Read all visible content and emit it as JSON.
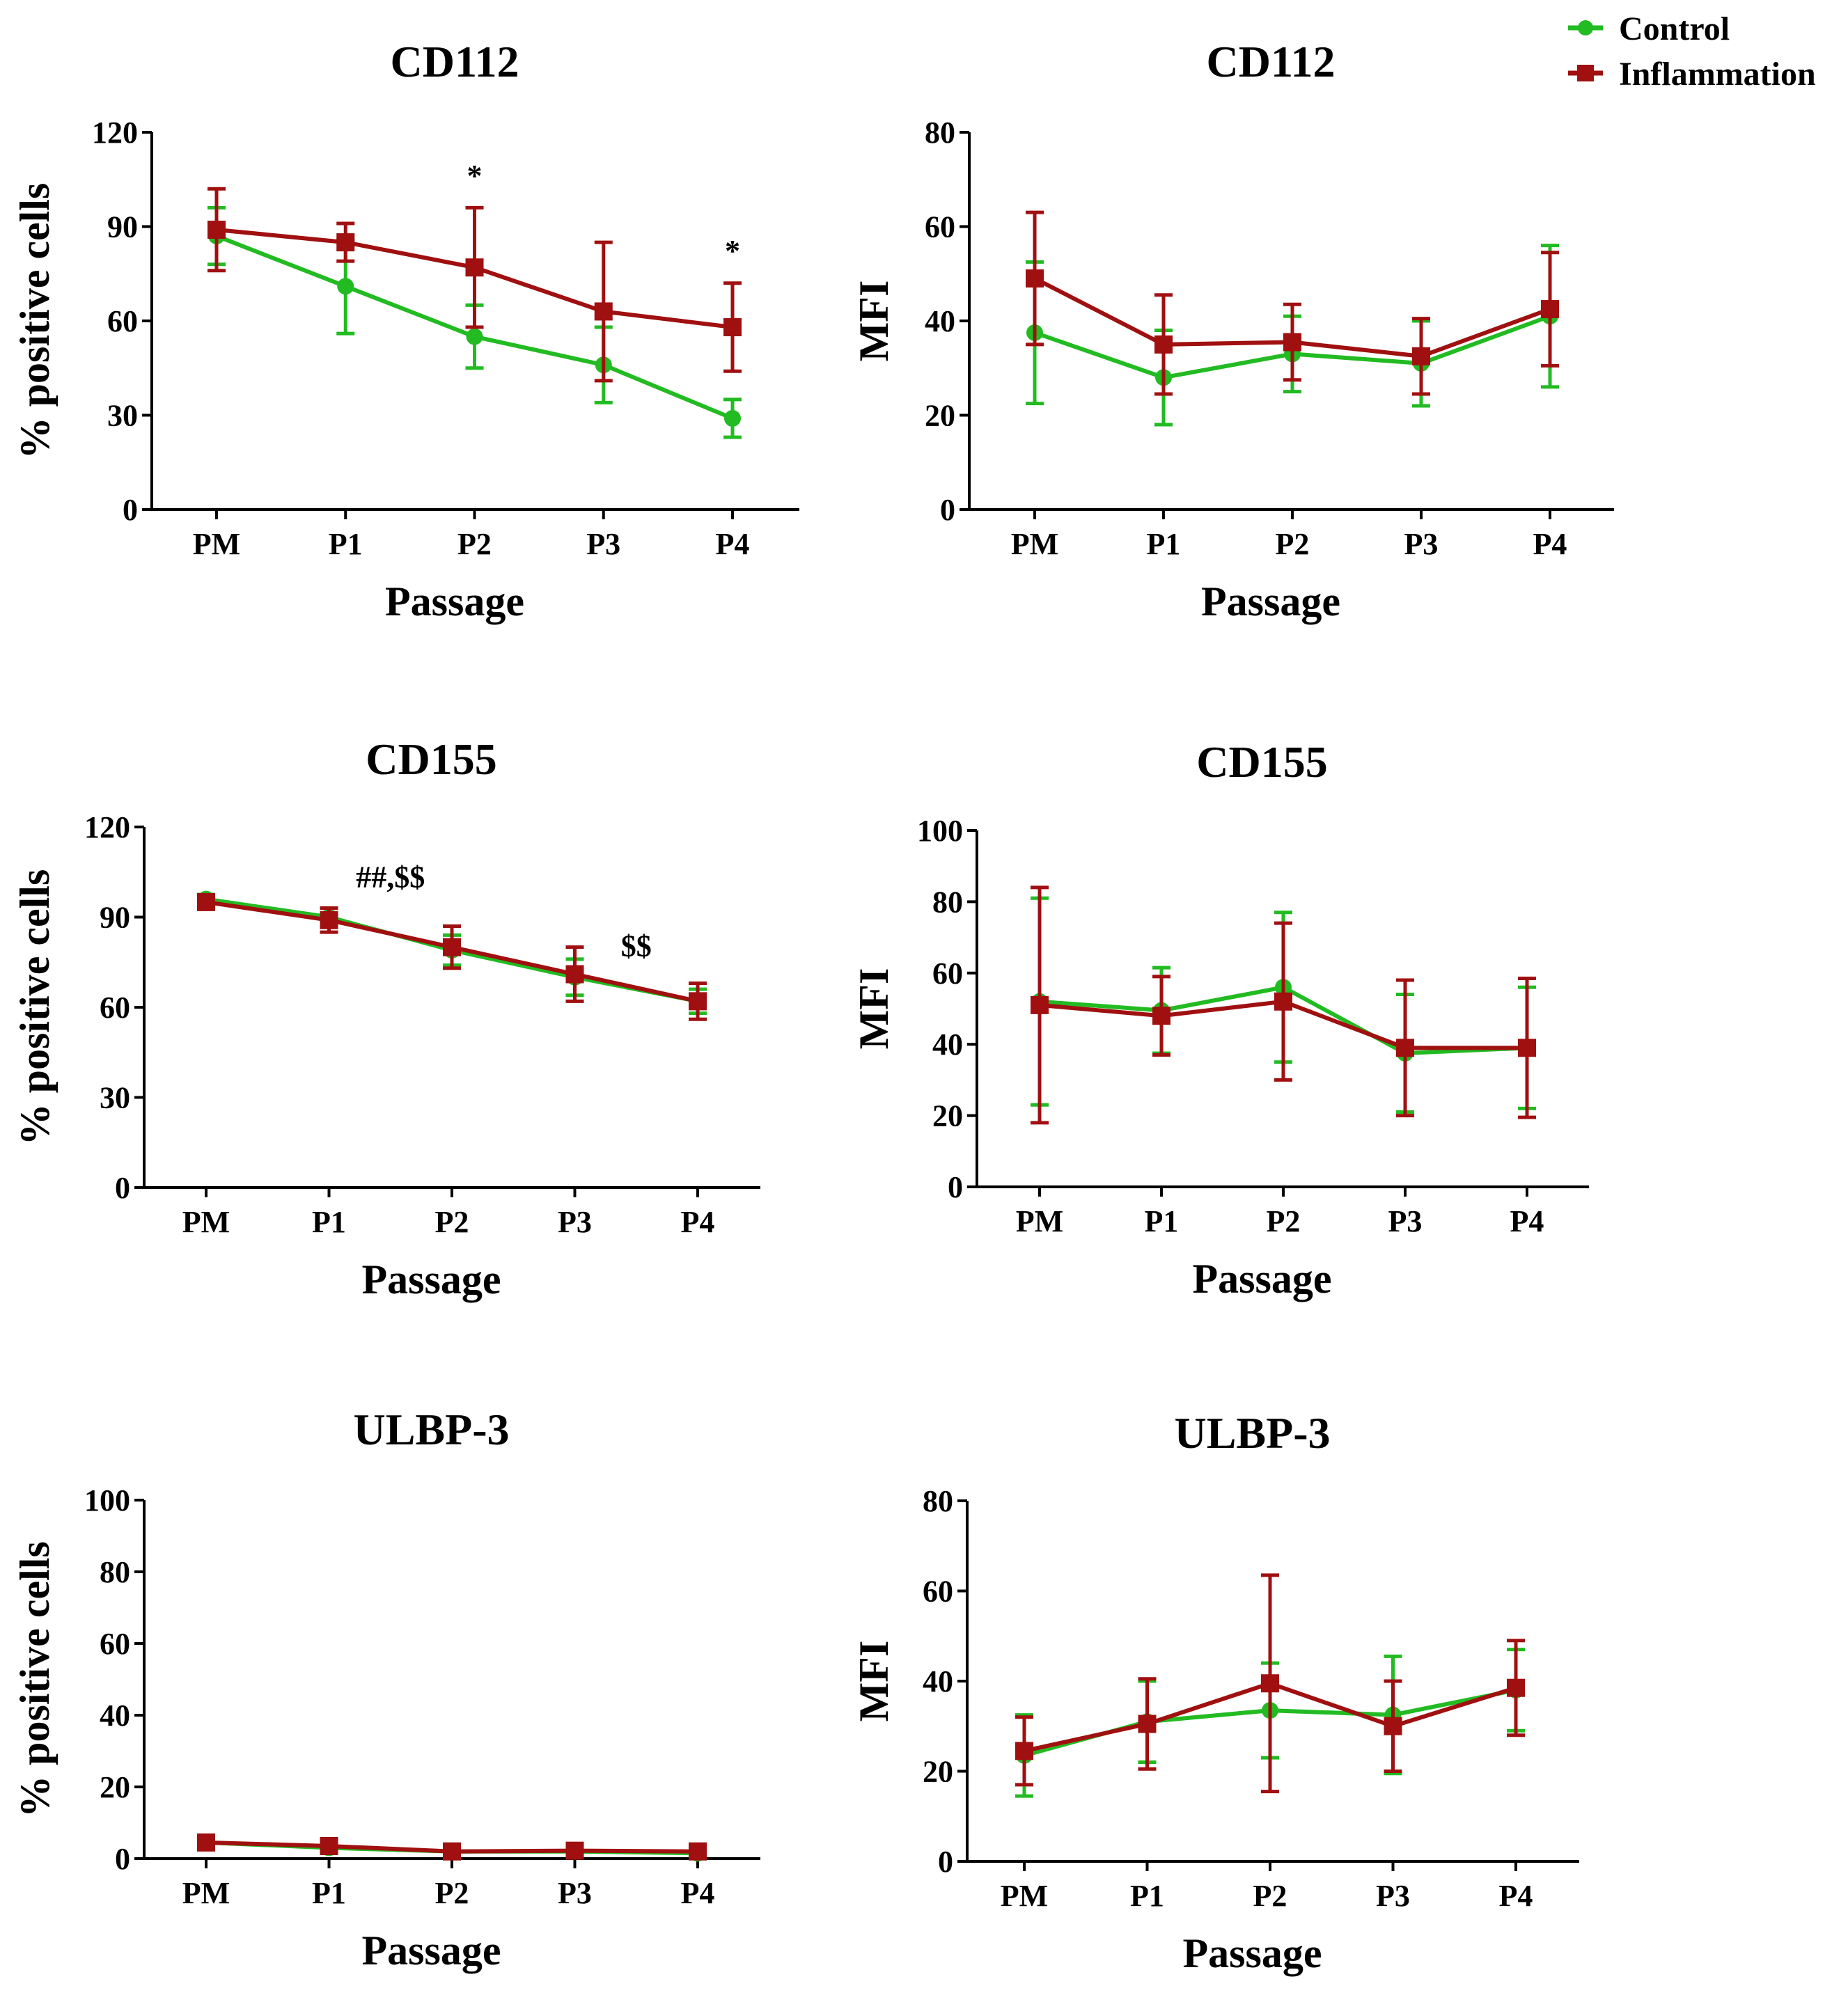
{
  "legend": {
    "entries": [
      {
        "name": "Control",
        "color": "#22bb22",
        "marker": "circle"
      },
      {
        "name": "Inflammation",
        "color": "#a01010",
        "marker": "square"
      }
    ]
  },
  "colors": {
    "control": "#22bb22",
    "inflammation": "#a01010"
  },
  "chart_data": [
    {
      "type": "line",
      "title": "CD112",
      "xlabel": "Passage",
      "ylabel": "% positive cells",
      "categories": [
        "PM",
        "P1",
        "P2",
        "P3",
        "P4"
      ],
      "ylim": [
        0,
        120
      ],
      "yticks": [
        "0",
        "30",
        "60",
        "90",
        "120"
      ],
      "series": [
        {
          "name": "Control",
          "values": [
            87,
            71,
            55,
            46,
            29
          ],
          "errors": [
            9,
            15,
            10,
            12,
            6
          ]
        },
        {
          "name": "Inflammation",
          "values": [
            89,
            85,
            77,
            63,
            58
          ],
          "errors": [
            13,
            6,
            19,
            22,
            14
          ]
        }
      ],
      "annotations": [
        {
          "text": "*",
          "category": "P2",
          "y": 103
        },
        {
          "text": "*",
          "category": "P4",
          "y": 79
        }
      ]
    },
    {
      "type": "line",
      "title": "CD112",
      "xlabel": "Passage",
      "ylabel": "MFI",
      "categories": [
        "PM",
        "P1",
        "P2",
        "P3",
        "P4"
      ],
      "ylim": [
        0,
        80
      ],
      "yticks": [
        "0",
        "20",
        "40",
        "60",
        "80"
      ],
      "series": [
        {
          "name": "Control",
          "values": [
            37.5,
            28,
            33,
            31,
            41
          ],
          "errors": [
            15,
            10,
            8,
            9,
            15
          ]
        },
        {
          "name": "Inflammation",
          "values": [
            49,
            35,
            35.5,
            32.5,
            42.5
          ],
          "errors": [
            14,
            10.5,
            8,
            8,
            12
          ]
        }
      ],
      "annotations": []
    },
    {
      "type": "line",
      "title": "CD155",
      "xlabel": "Passage",
      "ylabel": "% positive cells",
      "categories": [
        "PM",
        "P1",
        "P2",
        "P3",
        "P4"
      ],
      "ylim": [
        0,
        120
      ],
      "yticks": [
        "0",
        "30",
        "60",
        "90",
        "120"
      ],
      "series": [
        {
          "name": "Control",
          "values": [
            96,
            90,
            79,
            70,
            62
          ],
          "errors": [
            1.5,
            3,
            5,
            6,
            4
          ]
        },
        {
          "name": "Inflammation",
          "values": [
            95,
            89,
            80,
            71,
            62
          ],
          "errors": [
            2,
            4,
            7,
            9,
            6
          ]
        }
      ],
      "annotations": [
        {
          "text": "##,$$",
          "category_pos": 1.5,
          "y": 100
        },
        {
          "text": "$$",
          "category_pos": 3.5,
          "y": 77
        }
      ]
    },
    {
      "type": "line",
      "title": "CD155",
      "xlabel": "Passage",
      "ylabel": "MFI",
      "categories": [
        "PM",
        "P1",
        "P2",
        "P3",
        "P4"
      ],
      "ylim": [
        0,
        100
      ],
      "yticks": [
        "0",
        "20",
        "40",
        "60",
        "80",
        "100"
      ],
      "series": [
        {
          "name": "Control",
          "values": [
            52,
            49.5,
            56,
            37.5,
            39
          ],
          "errors": [
            29,
            12,
            21,
            16.5,
            17
          ]
        },
        {
          "name": "Inflammation",
          "values": [
            51,
            48,
            52,
            39,
            39
          ],
          "errors": [
            33,
            11,
            22,
            19,
            19.5
          ]
        }
      ],
      "annotations": []
    },
    {
      "type": "line",
      "title": "ULBP-3",
      "xlabel": "Passage",
      "ylabel": "% positive cells",
      "categories": [
        "PM",
        "P1",
        "P2",
        "P3",
        "P4"
      ],
      "ylim": [
        0,
        100
      ],
      "yticks": [
        "0",
        "20",
        "40",
        "60",
        "80",
        "100"
      ],
      "series": [
        {
          "name": "Control",
          "values": [
            4.5,
            3,
            2,
            2,
            1.5
          ],
          "errors": [
            1,
            0.8,
            0.5,
            0.5,
            0.5
          ]
        },
        {
          "name": "Inflammation",
          "values": [
            4.5,
            3.5,
            2,
            2.2,
            2
          ],
          "errors": [
            1.2,
            1,
            0.6,
            0.6,
            0.5
          ]
        }
      ],
      "annotations": []
    },
    {
      "type": "line",
      "title": "ULBP-3",
      "xlabel": "Passage",
      "ylabel": "MFI",
      "categories": [
        "PM",
        "P1",
        "P2",
        "P3",
        "P4"
      ],
      "ylim": [
        0,
        80
      ],
      "yticks": [
        "0",
        "20",
        "40",
        "60",
        "80"
      ],
      "series": [
        {
          "name": "Control",
          "values": [
            23.5,
            31,
            33.5,
            32.5,
            38
          ],
          "errors": [
            9,
            9,
            10.5,
            13,
            9
          ]
        },
        {
          "name": "Inflammation",
          "values": [
            24.5,
            30.5,
            39.5,
            30,
            38.5
          ],
          "errors": [
            7.5,
            10,
            24,
            10,
            10.5
          ]
        }
      ],
      "annotations": []
    }
  ]
}
